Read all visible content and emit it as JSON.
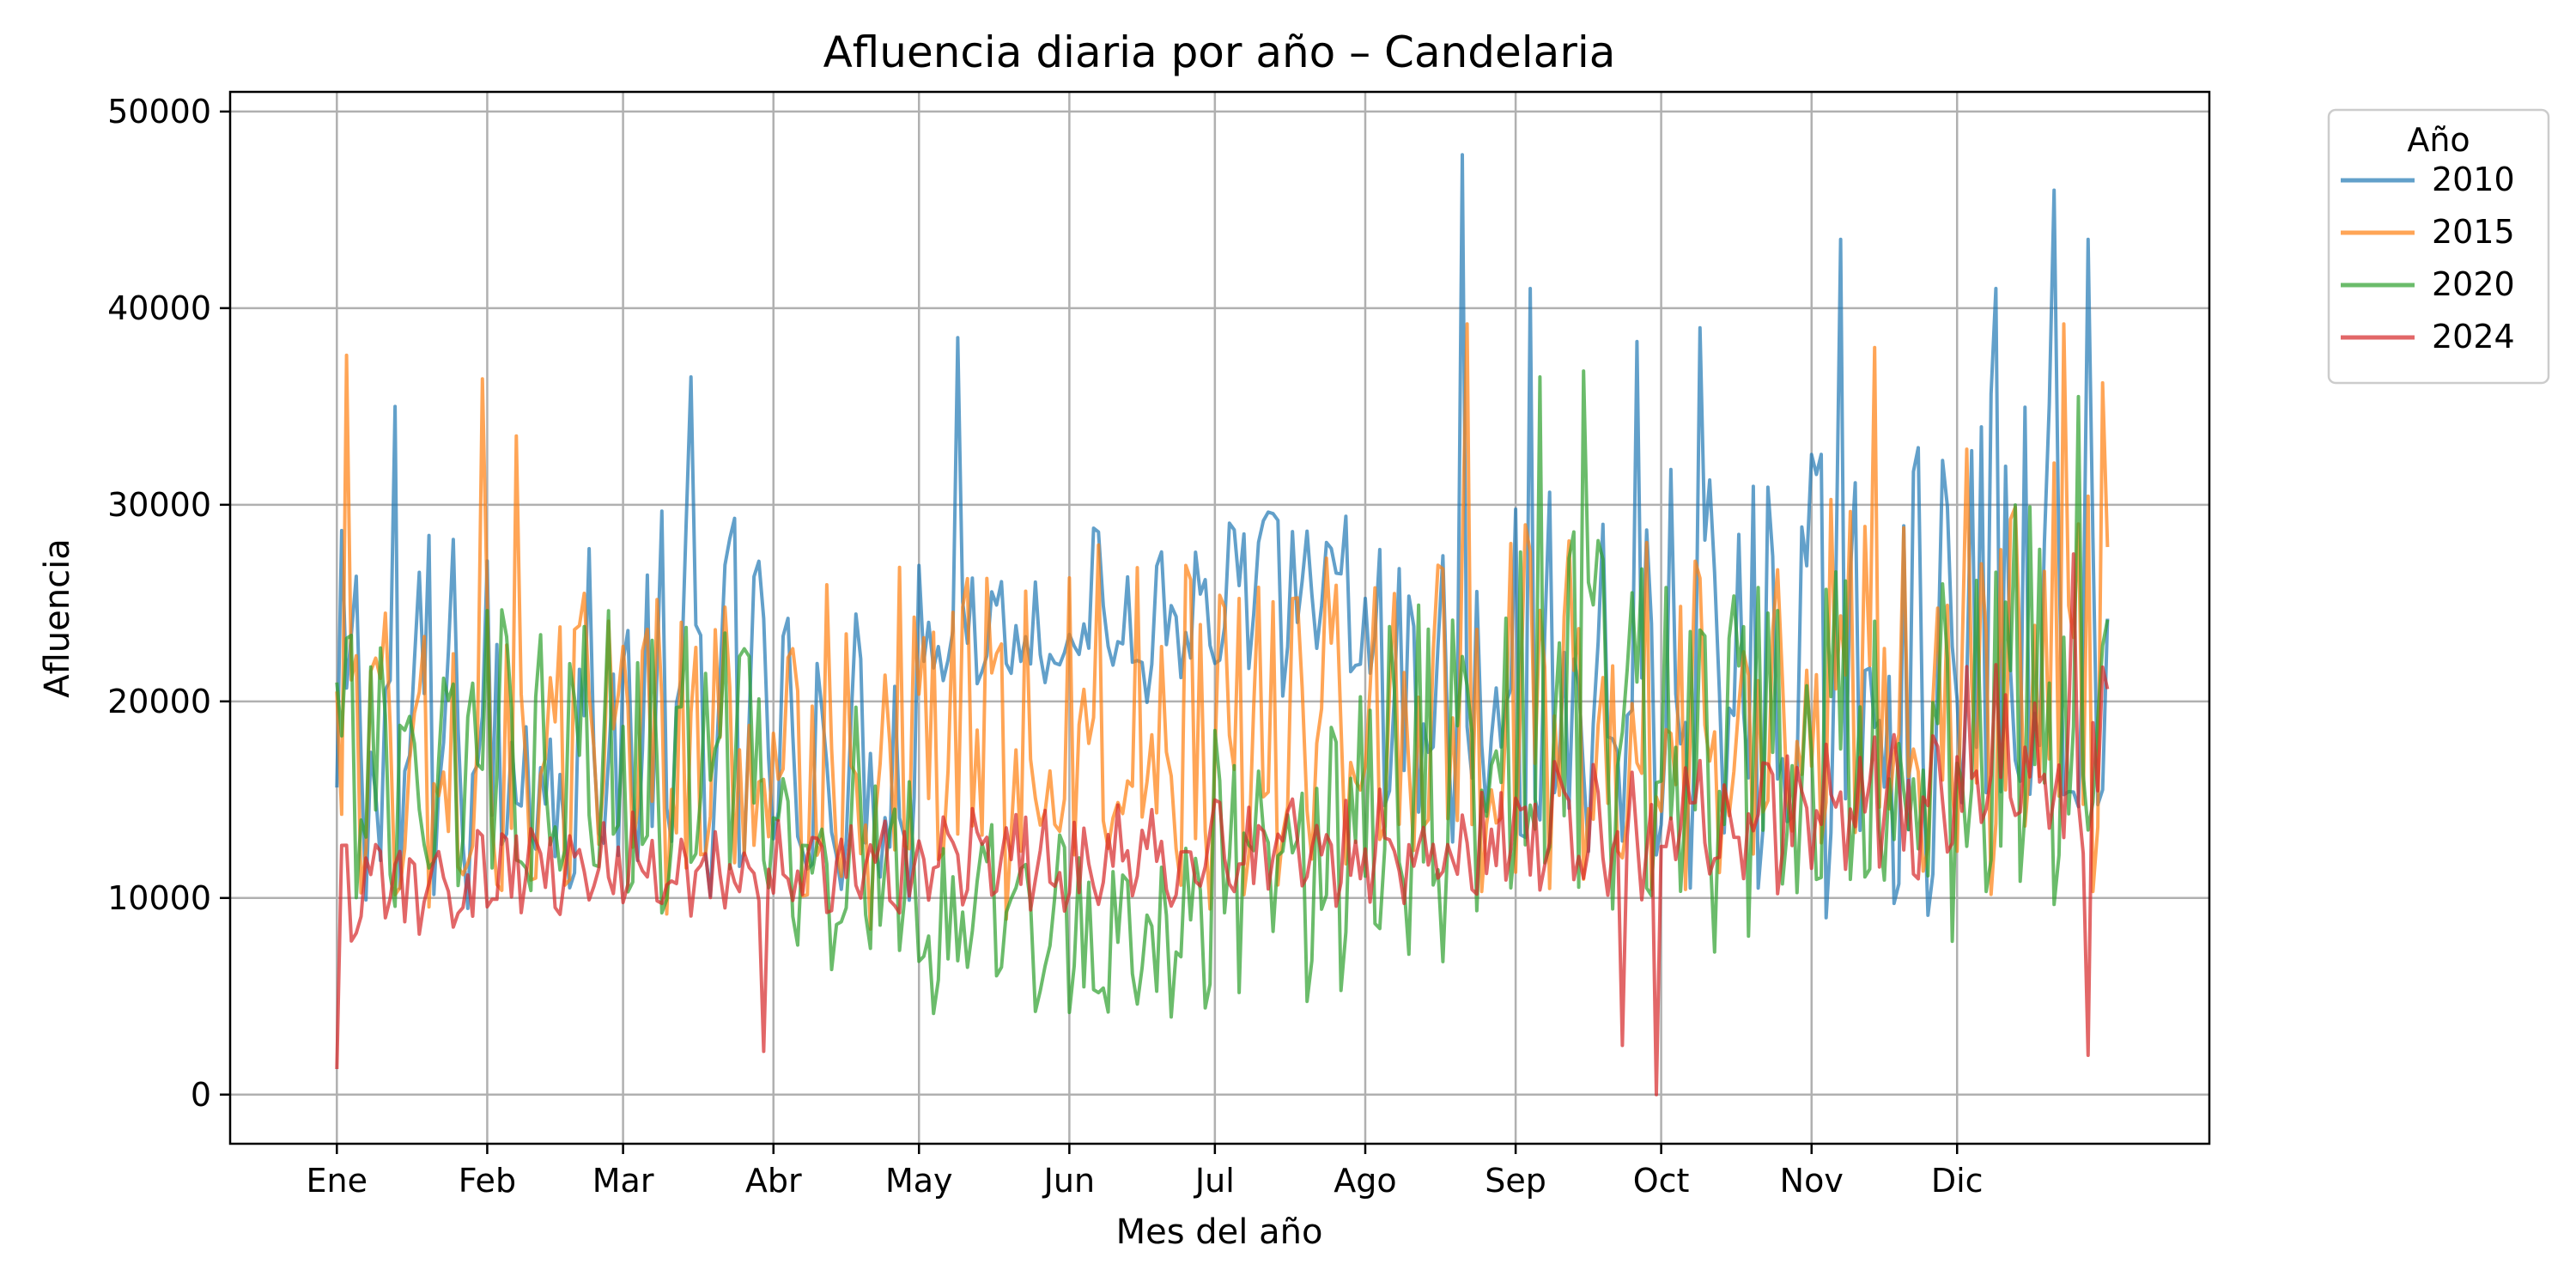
{
  "chart_data": {
    "type": "line",
    "title": "Afluencia diaria por año – Candelaria",
    "xlabel": "Mes del año",
    "ylabel": "Afluencia",
    "ylim": [
      -2500,
      51000
    ],
    "xlim": [
      -22,
      386
    ],
    "yticks": [
      0,
      10000,
      20000,
      30000,
      40000,
      50000
    ],
    "yticklabels": [
      "0",
      "10000",
      "20000",
      "30000",
      "40000",
      "50000"
    ],
    "xticks": [
      0,
      31,
      59,
      90,
      120,
      151,
      181,
      212,
      243,
      273,
      304,
      334
    ],
    "xticklabels": [
      "Ene",
      "Feb",
      "Mar",
      "Abr",
      "May",
      "Jun",
      "Jul",
      "Ago",
      "Sep",
      "Oct",
      "Nov",
      "Dic"
    ],
    "x_unit": "día del año (0 = 1 de enero)",
    "grid": true,
    "legend": {
      "title": "Año",
      "placement": "outside-top-right"
    },
    "series": [
      {
        "name": "2010",
        "color": "#1f77b4",
        "monthly_profile": {
          "low": [
            5500,
            6500,
            6500,
            7500,
            19000,
            19000,
            19000,
            8000,
            8000,
            7500,
            6500,
            6500
          ],
          "high": [
            29000,
            28000,
            30000,
            25000,
            28000,
            29000,
            30000,
            29000,
            31000,
            32000,
            33000,
            36000
          ]
        },
        "peaks": [
          {
            "x": 12,
            "y": 35000
          },
          {
            "x": 73,
            "y": 36500
          },
          {
            "x": 128,
            "y": 38500
          },
          {
            "x": 232,
            "y": 47800
          },
          {
            "x": 246,
            "y": 41000
          },
          {
            "x": 268,
            "y": 38300
          },
          {
            "x": 281,
            "y": 39000
          },
          {
            "x": 310,
            "y": 43500
          },
          {
            "x": 342,
            "y": 41000
          },
          {
            "x": 354,
            "y": 46000
          },
          {
            "x": 361,
            "y": 43500
          }
        ]
      },
      {
        "name": "2015",
        "color": "#ff7f0e",
        "monthly_profile": {
          "low": [
            5500,
            6000,
            6500,
            6500,
            7000,
            7500,
            8000,
            8500,
            8500,
            8000,
            7500,
            7500
          ],
          "high": [
            25000,
            26000,
            26000,
            27000,
            27000,
            28000,
            28000,
            29000,
            29000,
            30000,
            31000,
            33000
          ]
        },
        "peaks": [
          {
            "x": 2,
            "y": 37600
          },
          {
            "x": 30,
            "y": 36400
          },
          {
            "x": 37,
            "y": 33500
          },
          {
            "x": 233,
            "y": 39200
          },
          {
            "x": 317,
            "y": 38000
          },
          {
            "x": 356,
            "y": 39200
          },
          {
            "x": 364,
            "y": 36200
          }
        ]
      },
      {
        "name": "2020",
        "color": "#2ca02c",
        "monthly_profile": {
          "low": [
            7000,
            7000,
            7000,
            4000,
            3000,
            2500,
            3000,
            4000,
            5000,
            5000,
            5500,
            6000
          ],
          "high": [
            24000,
            25000,
            25000,
            20000,
            14000,
            13000,
            21000,
            27000,
            30000,
            26000,
            27000,
            30000
          ]
        },
        "peaks": [
          {
            "x": 248,
            "y": 36500
          },
          {
            "x": 257,
            "y": 36800
          },
          {
            "x": 359,
            "y": 35500
          }
        ]
      },
      {
        "name": "2024",
        "color": "#d62728",
        "monthly_profile": {
          "low": [
            7000,
            8000,
            8500,
            8000,
            8500,
            8500,
            9000,
            9000,
            9000,
            9500,
            9500,
            10000
          ],
          "high": [
            13500,
            14000,
            14500,
            14500,
            15000,
            15000,
            15500,
            16000,
            17000,
            17500,
            18500,
            22000
          ]
        },
        "peaks": [
          {
            "x": 0,
            "y": 1300
          },
          {
            "x": 88,
            "y": 2200
          },
          {
            "x": 265,
            "y": 2500
          },
          {
            "x": 272,
            "y": 0
          },
          {
            "x": 358,
            "y": 27500
          },
          {
            "x": 361,
            "y": 2000
          }
        ]
      }
    ]
  }
}
